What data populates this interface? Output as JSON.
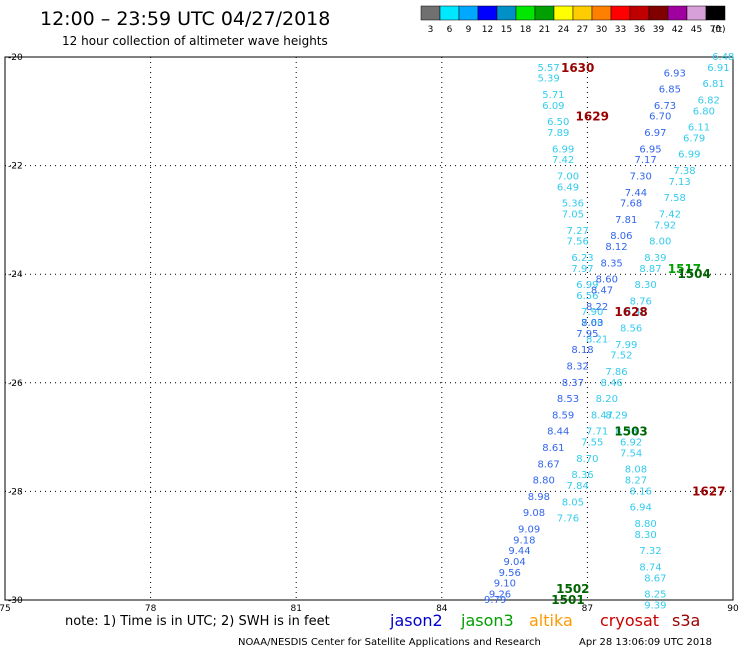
{
  "header": {
    "title": "12:00 – 23:59 UTC 04/27/2018",
    "subtitle": "12 hour collection of altimeter wave heights"
  },
  "colorbar": {
    "colors": [
      "#707070",
      "#00e8ff",
      "#00a8ff",
      "#0000ff",
      "#0090c8",
      "#00e800",
      "#00a000",
      "#ffff00",
      "#ffcc00",
      "#ff8000",
      "#ff0000",
      "#c00000",
      "#800000",
      "#a000a0",
      "#d8a0d8",
      "#000000"
    ],
    "labels": [
      "3",
      "6",
      "9",
      "12",
      "15",
      "18",
      "21",
      "24",
      "27",
      "30",
      "33",
      "36",
      "39",
      "42",
      "45",
      "70"
    ],
    "unit": "(ft)"
  },
  "footer": {
    "note": "note: 1) Time is in UTC; 2) SWH is in feet",
    "satellites": [
      {
        "name": "jason2",
        "color": "#0000cc"
      },
      {
        "name": "jason3",
        "color": "#00a000"
      },
      {
        "name": "altika",
        "color": "#ff9900"
      },
      {
        "name": "cryosat",
        "color": "#cc0000"
      },
      {
        "name": "s3a",
        "color": "#990000"
      }
    ],
    "credit": "NOAA/NESDIS Center for Satellite Applications and Research",
    "timestamp": "Apr 28 13:06:09 UTC 2018"
  },
  "chart_data": {
    "type": "scatter",
    "xlim": [
      75,
      90
    ],
    "ylim": [
      -30,
      -20
    ],
    "x_ticks": [
      "75",
      "78",
      "81",
      "84",
      "87",
      "90"
    ],
    "y_ticks": [
      "-20",
      "-22",
      "-24",
      "-26",
      "-28",
      "-30"
    ],
    "grid": "dotted",
    "pass_labels": [
      {
        "text": "1630",
        "x": 86.8,
        "y": -20.2,
        "color": "#990000"
      },
      {
        "text": "1629",
        "x": 87.1,
        "y": -21.1,
        "color": "#990000"
      },
      {
        "text": "1628",
        "x": 87.9,
        "y": -24.7,
        "color": "#990000"
      },
      {
        "text": "1627",
        "x": 89.5,
        "y": -28.0,
        "color": "#990000"
      },
      {
        "text": "1517",
        "x": 89.0,
        "y": -23.9,
        "color": "#00a000"
      },
      {
        "text": "1504",
        "x": 89.2,
        "y": -24.0,
        "color": "#006400"
      },
      {
        "text": "1503",
        "x": 87.9,
        "y": -26.9,
        "color": "#006400"
      },
      {
        "text": "1502",
        "x": 86.7,
        "y": -29.8,
        "color": "#006400"
      },
      {
        "text": "1501",
        "x": 86.6,
        "y": -30.0,
        "color": "#006400"
      }
    ],
    "series": [
      {
        "name": "cryosat 1630/1629/1627",
        "color": "#33ccee",
        "points": [
          {
            "x": 86.2,
            "y": -20.2,
            "v": "5.57"
          },
          {
            "x": 86.2,
            "y": -20.4,
            "v": "5.39"
          },
          {
            "x": 86.3,
            "y": -20.7,
            "v": "5.71"
          },
          {
            "x": 86.3,
            "y": -20.9,
            "v": "6.09"
          },
          {
            "x": 86.4,
            "y": -21.2,
            "v": "6.50"
          },
          {
            "x": 86.4,
            "y": -21.4,
            "v": "7.89"
          },
          {
            "x": 86.5,
            "y": -21.7,
            "v": "6.99"
          },
          {
            "x": 86.5,
            "y": -21.9,
            "v": "7.42"
          },
          {
            "x": 86.6,
            "y": -22.2,
            "v": "7.00"
          },
          {
            "x": 86.6,
            "y": -22.4,
            "v": "6.49"
          },
          {
            "x": 86.7,
            "y": -22.7,
            "v": "5.36"
          },
          {
            "x": 86.7,
            "y": -22.9,
            "v": "7.05"
          },
          {
            "x": 86.8,
            "y": -23.2,
            "v": "7.27"
          },
          {
            "x": 86.8,
            "y": -23.4,
            "v": "7.56"
          },
          {
            "x": 86.9,
            "y": -23.7,
            "v": "6.23"
          },
          {
            "x": 86.9,
            "y": -23.9,
            "v": "7.97"
          },
          {
            "x": 87.0,
            "y": -24.2,
            "v": "6.99"
          },
          {
            "x": 87.0,
            "y": -24.4,
            "v": "6.56"
          },
          {
            "x": 87.1,
            "y": -24.7,
            "v": "7.90"
          },
          {
            "x": 87.1,
            "y": -24.9,
            "v": "7.60"
          },
          {
            "x": 87.2,
            "y": -25.2,
            "v": "8.21"
          },
          {
            "x": 87.6,
            "y": -26.6,
            "v": "8.29"
          },
          {
            "x": 87.8,
            "y": -26.9,
            "v": "8.38"
          },
          {
            "x": 87.9,
            "y": -27.1,
            "v": "6.92"
          },
          {
            "x": 87.9,
            "y": -27.3,
            "v": "7.54"
          },
          {
            "x": 88.0,
            "y": -27.6,
            "v": "8.08"
          },
          {
            "x": 88.0,
            "y": -27.8,
            "v": "8.27"
          },
          {
            "x": 88.1,
            "y": -28.0,
            "v": "8.16"
          },
          {
            "x": 88.1,
            "y": -28.3,
            "v": "6.94"
          },
          {
            "x": 88.2,
            "y": -28.6,
            "v": "8.80"
          },
          {
            "x": 88.2,
            "y": -28.8,
            "v": "8.30"
          },
          {
            "x": 88.3,
            "y": -29.1,
            "v": "7.32"
          },
          {
            "x": 88.3,
            "y": -29.4,
            "v": "8.74"
          },
          {
            "x": 88.4,
            "y": -29.6,
            "v": "8.67"
          },
          {
            "x": 88.4,
            "y": -29.9,
            "v": "8.25"
          },
          {
            "x": 88.4,
            "y": -30.1,
            "v": "9.39"
          }
        ]
      },
      {
        "name": "jason3 1517/1504/1503",
        "color": "#33ccee",
        "points": [
          {
            "x": 89.8,
            "y": -20.0,
            "v": "6.48"
          },
          {
            "x": 89.7,
            "y": -20.2,
            "v": "6.91"
          },
          {
            "x": 89.6,
            "y": -20.5,
            "v": "6.81"
          },
          {
            "x": 89.5,
            "y": -20.8,
            "v": "6.82"
          },
          {
            "x": 89.4,
            "y": -21.0,
            "v": "6.80"
          },
          {
            "x": 89.3,
            "y": -21.3,
            "v": "6.11"
          },
          {
            "x": 89.2,
            "y": -21.5,
            "v": "6.79"
          },
          {
            "x": 89.1,
            "y": -21.8,
            "v": "6.99"
          },
          {
            "x": 89.0,
            "y": -22.1,
            "v": "7.38"
          },
          {
            "x": 88.9,
            "y": -22.3,
            "v": "7.13"
          },
          {
            "x": 88.8,
            "y": -22.6,
            "v": "7.58"
          },
          {
            "x": 88.7,
            "y": -22.9,
            "v": "7.42"
          },
          {
            "x": 88.6,
            "y": -23.1,
            "v": "7.92"
          },
          {
            "x": 88.5,
            "y": -23.4,
            "v": "8.00"
          },
          {
            "x": 88.4,
            "y": -23.7,
            "v": "8.39"
          },
          {
            "x": 88.3,
            "y": -23.9,
            "v": "8.87"
          },
          {
            "x": 88.2,
            "y": -24.2,
            "v": "8.30"
          },
          {
            "x": 88.1,
            "y": -24.5,
            "v": "8.76"
          },
          {
            "x": 88.0,
            "y": -24.7,
            "v": "8.46"
          },
          {
            "x": 87.9,
            "y": -25.0,
            "v": "8.56"
          },
          {
            "x": 87.8,
            "y": -25.3,
            "v": "7.99"
          },
          {
            "x": 87.7,
            "y": -25.5,
            "v": "7.52"
          },
          {
            "x": 87.6,
            "y": -25.8,
            "v": "7.86"
          },
          {
            "x": 87.5,
            "y": -26.0,
            "v": "8.46"
          },
          {
            "x": 87.4,
            "y": -26.3,
            "v": "8.20"
          },
          {
            "x": 87.3,
            "y": -26.6,
            "v": "8.47"
          },
          {
            "x": 87.2,
            "y": -26.9,
            "v": "7.71"
          },
          {
            "x": 87.1,
            "y": -27.1,
            "v": "7.55"
          },
          {
            "x": 87.0,
            "y": -27.4,
            "v": "8.70"
          },
          {
            "x": 86.9,
            "y": -27.7,
            "v": "8.36"
          },
          {
            "x": 86.8,
            "y": -27.9,
            "v": "7.84"
          },
          {
            "x": 86.7,
            "y": -28.2,
            "v": "8.05"
          },
          {
            "x": 86.6,
            "y": -28.5,
            "v": "7.76"
          }
        ]
      },
      {
        "name": "jason2 1502/1501",
        "color": "#3366ee",
        "points": [
          {
            "x": 88.8,
            "y": -20.3,
            "v": "6.93"
          },
          {
            "x": 88.7,
            "y": -20.6,
            "v": "6.85"
          },
          {
            "x": 88.6,
            "y": -20.9,
            "v": "6.73"
          },
          {
            "x": 88.5,
            "y": -21.1,
            "v": "6.70"
          },
          {
            "x": 88.4,
            "y": -21.4,
            "v": "6.97"
          },
          {
            "x": 88.3,
            "y": -21.7,
            "v": "6.95"
          },
          {
            "x": 88.2,
            "y": -21.9,
            "v": "7.17"
          },
          {
            "x": 88.1,
            "y": -22.2,
            "v": "7.30"
          },
          {
            "x": 88.0,
            "y": -22.5,
            "v": "7.44"
          },
          {
            "x": 87.9,
            "y": -22.7,
            "v": "7.68"
          },
          {
            "x": 87.8,
            "y": -23.0,
            "v": "7.81"
          },
          {
            "x": 87.7,
            "y": -23.3,
            "v": "8.06"
          },
          {
            "x": 87.6,
            "y": -23.5,
            "v": "8.12"
          },
          {
            "x": 87.5,
            "y": -23.8,
            "v": "8.35"
          },
          {
            "x": 87.4,
            "y": -24.1,
            "v": "8.60"
          },
          {
            "x": 87.3,
            "y": -24.3,
            "v": "8.47"
          },
          {
            "x": 87.2,
            "y": -24.6,
            "v": "8.22"
          },
          {
            "x": 87.1,
            "y": -24.9,
            "v": "8.03"
          },
          {
            "x": 87.0,
            "y": -25.1,
            "v": "7.95"
          },
          {
            "x": 86.9,
            "y": -25.4,
            "v": "8.18"
          },
          {
            "x": 86.8,
            "y": -25.7,
            "v": "8.32"
          },
          {
            "x": 86.7,
            "y": -26.0,
            "v": "8.37"
          },
          {
            "x": 86.6,
            "y": -26.3,
            "v": "8.53"
          },
          {
            "x": 86.5,
            "y": -26.6,
            "v": "8.59"
          },
          {
            "x": 86.4,
            "y": -26.9,
            "v": "8.44"
          },
          {
            "x": 86.3,
            "y": -27.2,
            "v": "8.61"
          },
          {
            "x": 86.2,
            "y": -27.5,
            "v": "8.67"
          },
          {
            "x": 86.1,
            "y": -27.8,
            "v": "8.80"
          },
          {
            "x": 86.0,
            "y": -28.1,
            "v": "8.98"
          },
          {
            "x": 85.9,
            "y": -28.4,
            "v": "9.08"
          },
          {
            "x": 85.8,
            "y": -28.7,
            "v": "9.09"
          },
          {
            "x": 85.7,
            "y": -28.9,
            "v": "9.18"
          },
          {
            "x": 85.6,
            "y": -29.1,
            "v": "9.44"
          },
          {
            "x": 85.5,
            "y": -29.3,
            "v": "9.04"
          },
          {
            "x": 85.4,
            "y": -29.5,
            "v": "9.56"
          },
          {
            "x": 85.3,
            "y": -29.7,
            "v": "9.10"
          },
          {
            "x": 85.2,
            "y": -29.9,
            "v": "9.26"
          },
          {
            "x": 85.1,
            "y": -30.0,
            "v": "9.79"
          }
        ]
      }
    ]
  }
}
